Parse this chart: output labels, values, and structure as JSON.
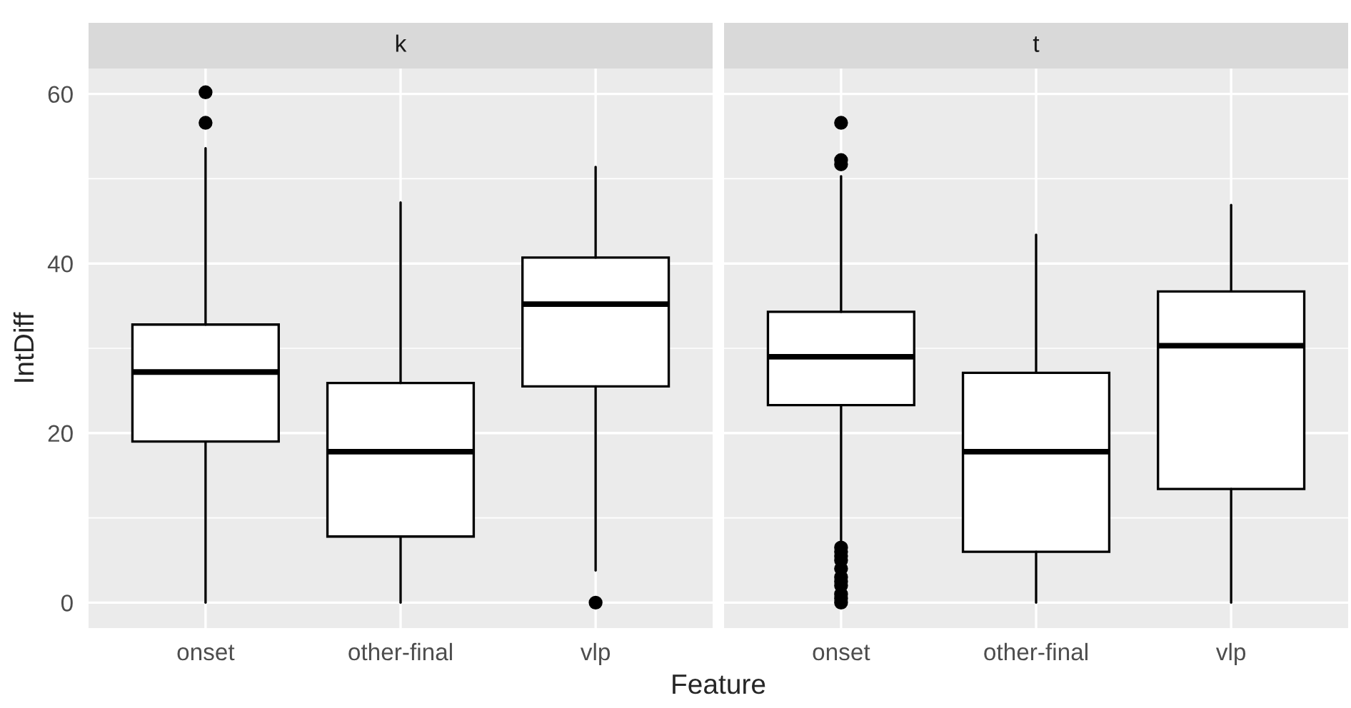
{
  "chart_data": [
    {
      "type": "box",
      "title": "k",
      "ylabel": "IntDiff",
      "xlabel": "Feature",
      "categories": [
        "onset",
        "other-final",
        "vlp"
      ],
      "ylim": [
        -3,
        63
      ],
      "yticks": [
        0,
        20,
        40,
        60
      ],
      "grid": true,
      "boxes": [
        {
          "low": 0,
          "q1": 19.0,
          "median": 27.2,
          "q3": 32.8,
          "high": 53.6,
          "outliers": [
            56.6,
            60.2
          ]
        },
        {
          "low": 0,
          "q1": 7.8,
          "median": 17.8,
          "q3": 25.9,
          "high": 47.2
        },
        {
          "low": 3.8,
          "q1": 25.5,
          "median": 35.2,
          "q3": 40.7,
          "high": 51.4,
          "outliers": [
            0
          ]
        }
      ]
    },
    {
      "type": "box",
      "title": "t",
      "categories": [
        "onset",
        "other-final",
        "vlp"
      ],
      "ylim": [
        -3,
        63
      ],
      "yticks": [
        0,
        20,
        40,
        60
      ],
      "grid": true,
      "tick_labels": "x",
      "boxes": [
        {
          "low": 7.2,
          "q1": 23.3,
          "median": 29.0,
          "q3": 34.3,
          "high": 50.3,
          "outliers": [
            51.7,
            52.2,
            56.6,
            6.5,
            6.0,
            5.5,
            5.0,
            4.0,
            3.0,
            2.5,
            2.0,
            1.0,
            0.5,
            0
          ]
        },
        {
          "low": 0,
          "q1": 6.0,
          "median": 17.8,
          "q3": 27.1,
          "high": 43.4
        },
        {
          "low": 0,
          "q1": 13.4,
          "median": 30.3,
          "q3": 36.7,
          "high": 46.9
        }
      ]
    }
  ]
}
